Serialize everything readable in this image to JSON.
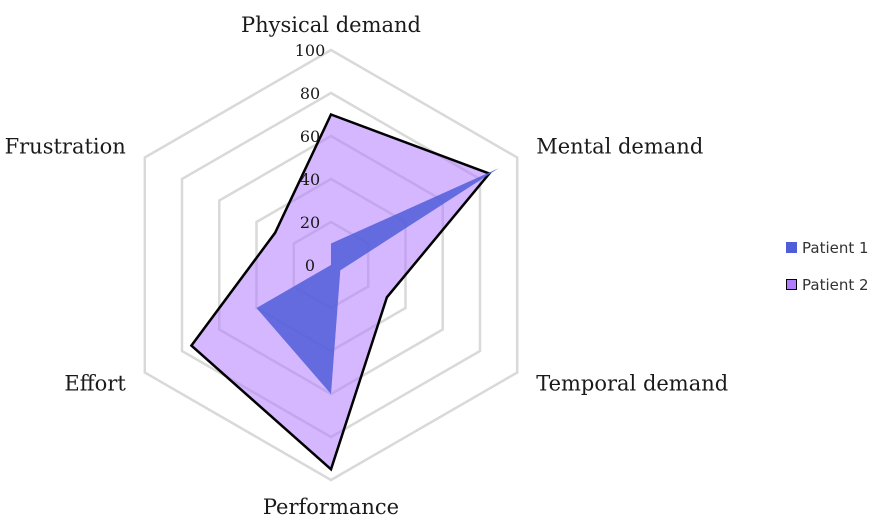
{
  "chart_data": {
    "type": "radar",
    "axes": [
      "Physical demand",
      "Mental demand",
      "Temporal demand",
      "Performance",
      "Effort",
      "Frustration"
    ],
    "r_ticks": [
      "0",
      "20",
      "40",
      "60",
      "80",
      "100"
    ],
    "rlim": [
      0,
      100
    ],
    "grid": true,
    "legend_position": "right",
    "series": [
      {
        "name": "Patient 1",
        "values": [
          10,
          90,
          5,
          60,
          40,
          0
        ],
        "fill": "#4f5ed8",
        "stroke": "none"
      },
      {
        "name": "Patient 2",
        "values": [
          70,
          85,
          30,
          95,
          75,
          30
        ],
        "fill": "#b27cff",
        "stroke": "#000000"
      }
    ]
  }
}
